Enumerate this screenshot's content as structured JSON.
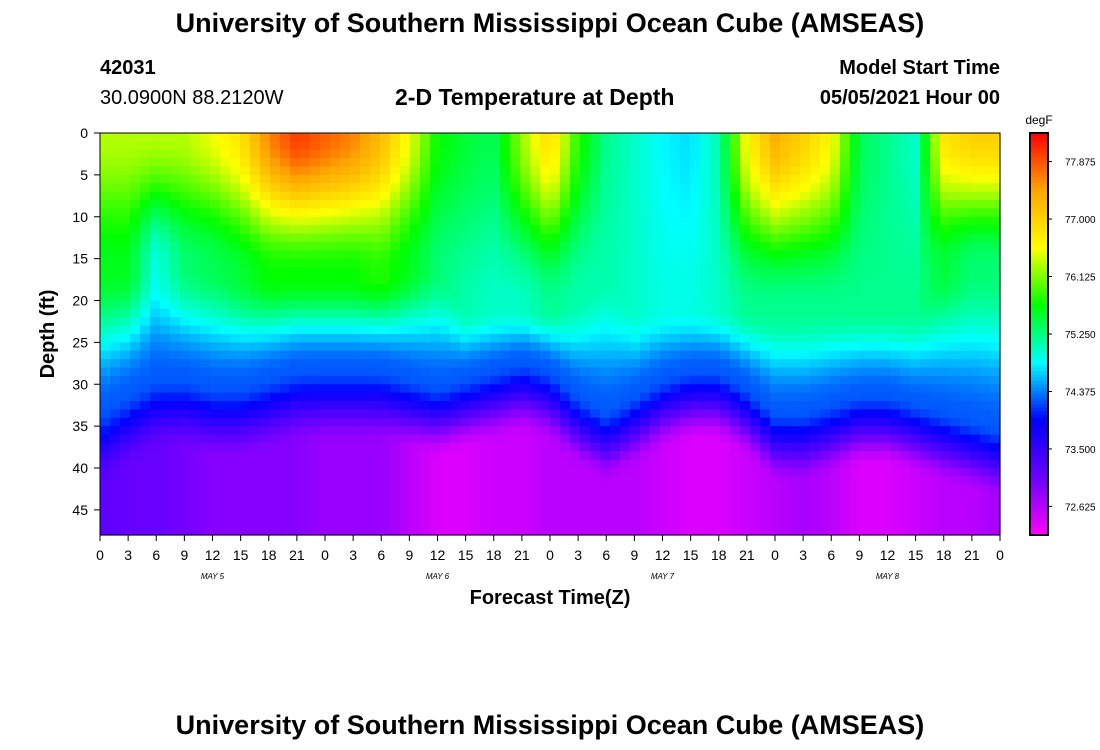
{
  "page": {
    "title_top": "University of Southern Mississippi Ocean Cube (AMSEAS)",
    "title_bottom": "University of Southern Mississippi Ocean Cube (AMSEAS)",
    "station_id": "42031",
    "location": "30.0900N  88.2120W",
    "model_start_label": "Model Start Time",
    "model_start_value": "05/05/2021 Hour 00"
  },
  "chart_data": {
    "type": "heatmap",
    "title": "2-D Temperature at Depth",
    "xlabel": "Forecast Time(Z)",
    "ylabel": "Depth (ft)",
    "x_range_hours": [
      0,
      96
    ],
    "y_range_ft": [
      0,
      48
    ],
    "y_ticks": [
      0,
      5,
      10,
      15,
      20,
      25,
      30,
      35,
      40,
      45
    ],
    "x_ticks": [
      "0",
      "3",
      "6",
      "9",
      "12",
      "15",
      "18",
      "21",
      "0",
      "3",
      "6",
      "9",
      "12",
      "15",
      "18",
      "21",
      "0",
      "3",
      "6",
      "9",
      "12",
      "15",
      "18",
      "21",
      "0",
      "3",
      "6",
      "9",
      "12",
      "15",
      "18",
      "21",
      "0"
    ],
    "day_labels": [
      {
        "label": "MAY  5",
        "hour": 12
      },
      {
        "label": "MAY  6",
        "hour": 36
      },
      {
        "label": "MAY  7",
        "hour": 60
      },
      {
        "label": "MAY  8",
        "hour": 84
      }
    ],
    "colorbar": {
      "unit": "degF",
      "min": 72.19,
      "max": 78.31,
      "tick_values": [
        72.625,
        73.5,
        74.375,
        75.25,
        76.125,
        77.0,
        77.875
      ],
      "tick_labels": [
        "72.625",
        "73.500",
        "74.375",
        "75.250",
        "76.125",
        "77.000",
        "77.875"
      ],
      "colors": [
        "#ff00ff",
        "#6b00ff",
        "#0000ff",
        "#00ffff",
        "#00ff00",
        "#ffff00",
        "#ffa500",
        "#ff0000"
      ]
    },
    "time_hours": [
      0,
      3,
      6,
      9,
      12,
      15,
      18,
      21,
      24,
      27,
      30,
      33,
      36,
      39,
      42,
      45,
      48,
      51,
      54,
      57,
      60,
      63,
      66,
      69,
      72,
      75,
      78,
      81,
      84,
      87,
      90,
      93,
      96
    ],
    "surface_temp_degF": [
      76.3,
      76.3,
      76.3,
      76.3,
      76.5,
      76.8,
      77.6,
      78.0,
      77.8,
      77.6,
      77.2,
      76.5,
      75.7,
      75.5,
      75.4,
      76.2,
      76.9,
      75.8,
      75.2,
      75.0,
      74.8,
      74.7,
      75.1,
      76.6,
      77.3,
      77.0,
      76.6,
      75.4,
      75.2,
      75.0,
      76.8,
      77.0,
      77.0
    ],
    "mixed_layer_depth_ft": [
      16,
      16,
      16,
      16,
      16,
      17,
      17,
      17,
      17,
      17,
      17,
      16,
      16,
      21,
      21,
      21,
      21,
      20,
      17,
      21,
      21,
      21,
      21,
      21,
      21,
      21,
      21,
      21,
      21,
      21,
      16,
      16,
      16
    ],
    "mixed_layer_bottom_temp_degF": [
      75.6,
      75.6,
      74.9,
      75.3,
      75.4,
      75.5,
      75.7,
      75.7,
      75.7,
      75.7,
      75.8,
      75.6,
      75.3,
      75.1,
      75.0,
      75.0,
      75.2,
      75.1,
      75.1,
      75.0,
      74.9,
      74.9,
      75.0,
      75.2,
      75.2,
      75.2,
      75.2,
      75.2,
      75.2,
      75.2,
      75.5,
      75.3,
      75.3
    ],
    "thermocline_depth_ft": [
      33,
      31,
      29,
      29,
      30,
      30,
      29,
      28,
      28,
      28,
      28,
      29,
      30,
      29,
      28,
      27,
      28,
      31,
      33,
      31,
      29,
      28,
      28,
      30,
      33,
      33,
      32,
      31,
      31,
      32,
      33,
      34,
      35
    ],
    "deep_temp_degF": [
      73.2,
      73.1,
      73.1,
      73.0,
      72.9,
      72.9,
      72.9,
      72.9,
      72.8,
      72.8,
      72.8,
      72.6,
      72.4,
      72.4,
      72.5,
      72.5,
      72.6,
      72.6,
      72.6,
      72.6,
      72.5,
      72.4,
      72.4,
      72.5,
      72.6,
      72.7,
      72.6,
      72.4,
      72.4,
      72.5,
      72.6,
      72.6,
      72.7
    ]
  }
}
